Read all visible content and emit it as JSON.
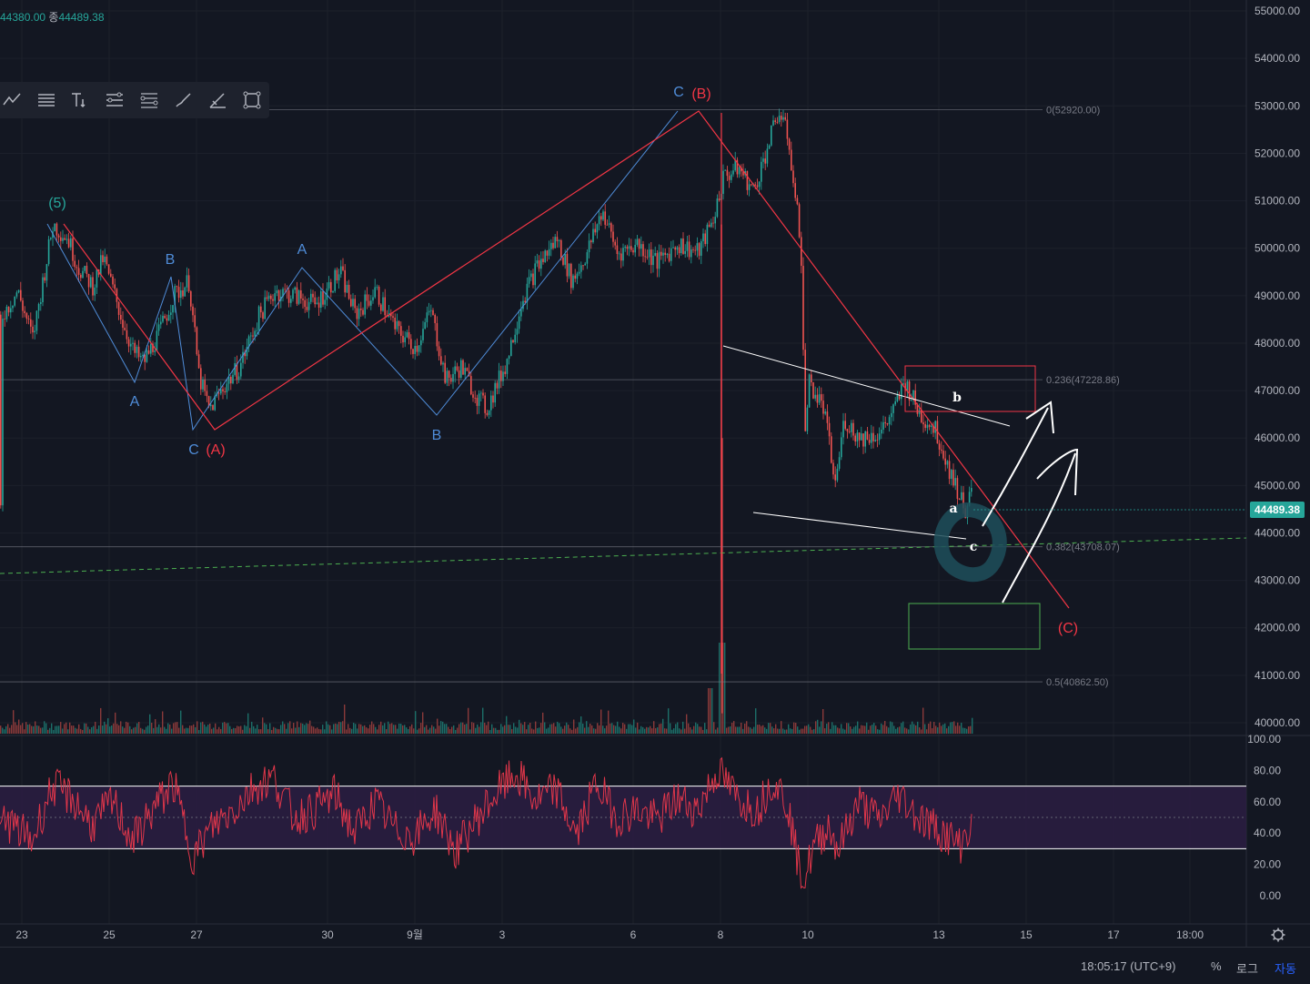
{
  "ohlc": {
    "low_value": "44380.00",
    "close_label": "종",
    "close_value": "44489.38"
  },
  "last_price": "44489.38",
  "status": {
    "time": "18:05:17 (UTC+9)",
    "percent": "%",
    "log": "로그",
    "auto": "자동"
  },
  "toolbar_icons": [
    "trend-line-icon",
    "horizontal-lines-icon",
    "text-tool-icon",
    "parallel-channel-icon",
    "fib-lines-icon",
    "brush-icon",
    "pen-icon",
    "rectangle-icon"
  ],
  "chart_data": [
    {
      "type": "candlestick",
      "y_axis": {
        "ticks": [
          "55000.00",
          "54000.00",
          "53000.00",
          "52000.00",
          "51000.00",
          "50000.00",
          "49000.00",
          "48000.00",
          "47000.00",
          "46000.00",
          "45000.00",
          "44000.00",
          "43000.00",
          "42000.00",
          "41000.00",
          "40000.00"
        ],
        "range": [
          39700,
          55300
        ]
      },
      "x_axis": {
        "ticks": [
          "23",
          "25",
          "27",
          "30",
          "9월",
          "3",
          "6",
          "8",
          "10",
          "13",
          "15",
          "17",
          "18:00"
        ]
      },
      "price_path": [
        {
          "t": 0,
          "p": 48600
        },
        {
          "t": 1.5,
          "p": 49100
        },
        {
          "t": 3,
          "p": 48100
        },
        {
          "t": 4,
          "p": 49300
        },
        {
          "t": 5,
          "p": 50500
        },
        {
          "t": 6.5,
          "p": 50200
        },
        {
          "t": 7.5,
          "p": 49600
        },
        {
          "t": 9,
          "p": 49200
        },
        {
          "t": 10,
          "p": 49800
        },
        {
          "t": 12,
          "p": 48400
        },
        {
          "t": 13,
          "p": 47800
        },
        {
          "t": 14,
          "p": 47600
        },
        {
          "t": 15.5,
          "p": 48200
        },
        {
          "t": 17,
          "p": 49000
        },
        {
          "t": 18.5,
          "p": 49300
        },
        {
          "t": 19.5,
          "p": 47300
        },
        {
          "t": 20.5,
          "p": 46600
        },
        {
          "t": 22,
          "p": 47100
        },
        {
          "t": 23.5,
          "p": 47500
        },
        {
          "t": 25.5,
          "p": 48600
        },
        {
          "t": 27,
          "p": 49100
        },
        {
          "t": 29,
          "p": 49000
        },
        {
          "t": 31,
          "p": 48800
        },
        {
          "t": 33.5,
          "p": 49500
        },
        {
          "t": 35,
          "p": 48600
        },
        {
          "t": 37,
          "p": 49100
        },
        {
          "t": 39,
          "p": 48300
        },
        {
          "t": 41,
          "p": 47900
        },
        {
          "t": 42.5,
          "p": 48700
        },
        {
          "t": 44,
          "p": 47200
        },
        {
          "t": 45.5,
          "p": 47500
        },
        {
          "t": 47,
          "p": 46900
        },
        {
          "t": 48,
          "p": 46600
        },
        {
          "t": 50,
          "p": 47600
        },
        {
          "t": 51.5,
          "p": 48900
        },
        {
          "t": 53,
          "p": 49600
        },
        {
          "t": 55,
          "p": 50200
        },
        {
          "t": 56.5,
          "p": 49300
        },
        {
          "t": 58,
          "p": 49900
        },
        {
          "t": 59.5,
          "p": 50800
        },
        {
          "t": 61,
          "p": 49900
        },
        {
          "t": 63,
          "p": 50100
        },
        {
          "t": 65,
          "p": 49700
        },
        {
          "t": 67,
          "p": 50100
        },
        {
          "t": 69,
          "p": 49900
        },
        {
          "t": 70.5,
          "p": 50600
        },
        {
          "t": 71.5,
          "p": 51500
        },
        {
          "t": 73,
          "p": 51700
        },
        {
          "t": 74.5,
          "p": 51200
        },
        {
          "t": 76,
          "p": 52200
        },
        {
          "t": 77,
          "p": 52900
        },
        {
          "t": 78,
          "p": 52300
        },
        {
          "t": 78.6,
          "p": 51100
        },
        {
          "t": 79.2,
          "p": 50200
        },
        {
          "t": 79.6,
          "p": 46100
        },
        {
          "t": 80,
          "p": 47200
        },
        {
          "t": 81.5,
          "p": 46600
        },
        {
          "t": 82.6,
          "p": 45000
        },
        {
          "t": 83.5,
          "p": 46400
        },
        {
          "t": 85,
          "p": 46000
        },
        {
          "t": 87,
          "p": 46100
        },
        {
          "t": 88.5,
          "p": 46600
        },
        {
          "t": 89.5,
          "p": 47200
        },
        {
          "t": 91,
          "p": 46500
        },
        {
          "t": 92.5,
          "p": 46200
        },
        {
          "t": 94,
          "p": 45300
        },
        {
          "t": 95.5,
          "p": 44500
        },
        {
          "t": 97,
          "p": 45300
        },
        {
          "t": 98.5,
          "p": 45800
        },
        {
          "t": 100,
          "p": 45500
        },
        {
          "t": 101.5,
          "p": 44900
        },
        {
          "t": 102.5,
          "p": 45700
        },
        {
          "t": 104,
          "p": 46100
        },
        {
          "t": 105,
          "p": 45800
        },
        {
          "t": 105.7,
          "p": 46400
        },
        {
          "t": 106.2,
          "p": 45200
        },
        {
          "t": 107,
          "p": 44700
        },
        {
          "t": 107.6,
          "p": 44489
        }
      ],
      "annotations": [
        {
          "text": "(5)",
          "color": "#26a69a"
        },
        {
          "text": "A",
          "color": "#4f8cd8"
        },
        {
          "text": "B",
          "color": "#4f8cd8"
        },
        {
          "text": "C",
          "color": "#4f8cd8"
        },
        {
          "text": "(A)",
          "color": "#f23645"
        },
        {
          "text": "A",
          "color": "#4f8cd8"
        },
        {
          "text": "B",
          "color": "#4f8cd8"
        },
        {
          "text": "C",
          "color": "#4f8cd8"
        },
        {
          "text": "(B)",
          "color": "#f23645"
        },
        {
          "text": "b",
          "color": "#ffffff"
        },
        {
          "text": "a",
          "color": "#ffffff"
        },
        {
          "text": "c",
          "color": "#ffffff"
        },
        {
          "text": "(C)",
          "color": "#f23645"
        }
      ],
      "fib_levels": [
        {
          "label": "0(52920.00)",
          "value": 52920
        },
        {
          "label": "0.236(47228.86)",
          "value": 47228.86
        },
        {
          "label": "0.382(43708.07)",
          "value": 43708.07
        },
        {
          "label": "0.5(40862.50)",
          "value": 40862.5
        }
      ],
      "colors": {
        "up": "#26a69a",
        "down": "#ef5350",
        "background": "#131722",
        "grid": "#1f2330"
      }
    },
    {
      "type": "line",
      "name_shown": "",
      "y_axis": {
        "ticks": [
          "100.00",
          "80.00",
          "60.00",
          "40.00",
          "20.00",
          "0.00"
        ],
        "range": [
          -5,
          102
        ]
      },
      "bands": {
        "upper": 70,
        "lower": 30,
        "middle": 50
      },
      "rsi_path": [
        {
          "t": 0,
          "p": 50
        },
        {
          "t": 3,
          "p": 35
        },
        {
          "t": 5,
          "p": 70
        },
        {
          "t": 7,
          "p": 62
        },
        {
          "t": 9,
          "p": 45
        },
        {
          "t": 11,
          "p": 60
        },
        {
          "t": 13,
          "p": 35
        },
        {
          "t": 15,
          "p": 55
        },
        {
          "t": 17,
          "p": 72
        },
        {
          "t": 19,
          "p": 25
        },
        {
          "t": 21,
          "p": 45
        },
        {
          "t": 23,
          "p": 55
        },
        {
          "t": 25,
          "p": 70
        },
        {
          "t": 27,
          "p": 75
        },
        {
          "t": 29,
          "p": 50
        },
        {
          "t": 31,
          "p": 55
        },
        {
          "t": 33,
          "p": 65
        },
        {
          "t": 35,
          "p": 40
        },
        {
          "t": 37,
          "p": 60
        },
        {
          "t": 39,
          "p": 42
        },
        {
          "t": 41,
          "p": 38
        },
        {
          "t": 43,
          "p": 55
        },
        {
          "t": 45,
          "p": 28
        },
        {
          "t": 47,
          "p": 48
        },
        {
          "t": 49,
          "p": 65
        },
        {
          "t": 51,
          "p": 78
        },
        {
          "t": 53,
          "p": 60
        },
        {
          "t": 55,
          "p": 68
        },
        {
          "t": 57,
          "p": 38
        },
        {
          "t": 59,
          "p": 72
        },
        {
          "t": 61,
          "p": 50
        },
        {
          "t": 63,
          "p": 55
        },
        {
          "t": 65,
          "p": 48
        },
        {
          "t": 67,
          "p": 62
        },
        {
          "t": 69,
          "p": 55
        },
        {
          "t": 71,
          "p": 80
        },
        {
          "t": 73,
          "p": 62
        },
        {
          "t": 75,
          "p": 55
        },
        {
          "t": 76.5,
          "p": 75
        },
        {
          "t": 78,
          "p": 58
        },
        {
          "t": 79,
          "p": 20
        },
        {
          "t": 79.6,
          "p": 10
        },
        {
          "t": 80.5,
          "p": 30
        },
        {
          "t": 82,
          "p": 45
        },
        {
          "t": 83,
          "p": 30
        },
        {
          "t": 85,
          "p": 60
        },
        {
          "t": 87,
          "p": 48
        },
        {
          "t": 89,
          "p": 65
        },
        {
          "t": 91,
          "p": 50
        },
        {
          "t": 93,
          "p": 42
        },
        {
          "t": 95,
          "p": 32
        },
        {
          "t": 97,
          "p": 55
        },
        {
          "t": 99,
          "p": 45
        },
        {
          "t": 101,
          "p": 65
        },
        {
          "t": 103,
          "p": 35
        },
        {
          "t": 104.5,
          "p": 78
        },
        {
          "t": 106,
          "p": 55
        },
        {
          "t": 107,
          "p": 30
        },
        {
          "t": 107.6,
          "p": 42
        }
      ],
      "colors": {
        "line": "#e0364a",
        "band_fill": "#2a1d40",
        "band_line": "#ffffff"
      }
    }
  ]
}
